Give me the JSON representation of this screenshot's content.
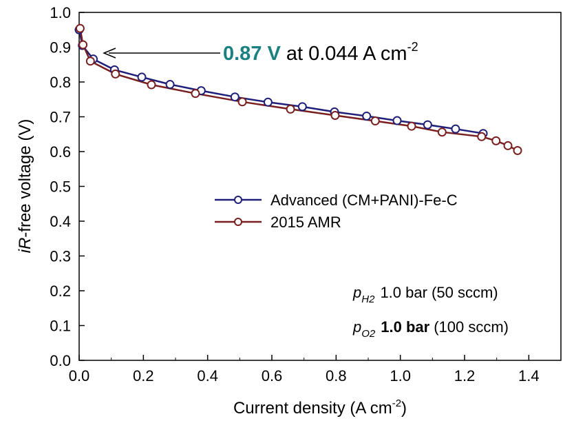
{
  "chart_data": {
    "type": "line",
    "title": "",
    "xlabel": "Current density (A cm",
    "xlabel_sup": "-2",
    "xlabel_close": ")",
    "ylabel_italic": "iR",
    "ylabel_rest": "-free voltage (V)",
    "xlim": [
      0.0,
      1.5
    ],
    "ylim": [
      0.0,
      1.0
    ],
    "xticks": [
      "0.0",
      "0.2",
      "0.4",
      "0.6",
      "0.8",
      "1.0",
      "1.2",
      "1.4"
    ],
    "xtick_values": [
      0.0,
      0.2,
      0.4,
      0.6,
      0.8,
      1.0,
      1.2,
      1.4
    ],
    "yticks": [
      "0.0",
      "0.1",
      "0.2",
      "0.3",
      "0.4",
      "0.5",
      "0.6",
      "0.7",
      "0.8",
      "0.9",
      "1.0"
    ],
    "ytick_values": [
      0.0,
      0.1,
      0.2,
      0.3,
      0.4,
      0.5,
      0.6,
      0.7,
      0.8,
      0.9,
      1.0
    ],
    "grid": false,
    "legend_position": "center-right",
    "series": [
      {
        "name": "Advanced (CM+PANI)-Fe-C",
        "color": "#1f1f7a",
        "x": [
          0.0,
          0.01,
          0.044,
          0.11,
          0.195,
          0.283,
          0.38,
          0.485,
          0.588,
          0.695,
          0.795,
          0.895,
          0.99,
          1.085,
          1.172,
          1.258
        ],
        "y": [
          0.95,
          0.905,
          0.866,
          0.835,
          0.814,
          0.793,
          0.775,
          0.757,
          0.742,
          0.729,
          0.714,
          0.702,
          0.689,
          0.677,
          0.665,
          0.652
        ]
      },
      {
        "name": "2015 AMR",
        "color": "#7a1f1f",
        "x": [
          0.003,
          0.012,
          0.035,
          0.113,
          0.225,
          0.362,
          0.508,
          0.658,
          0.797,
          0.922,
          1.035,
          1.13,
          1.253,
          1.298,
          1.335,
          1.365
        ],
        "y": [
          0.954,
          0.907,
          0.86,
          0.823,
          0.792,
          0.767,
          0.743,
          0.722,
          0.704,
          0.688,
          0.673,
          0.656,
          0.643,
          0.631,
          0.617,
          0.603
        ]
      }
    ],
    "annotation": {
      "value": "0.87 V",
      "value_color": "#1a8080",
      "rest": "at 0.044 A cm",
      "sup": "-2"
    },
    "conditions": [
      {
        "symbol": "p",
        "sub": "H2",
        "bold": "",
        "text": "1.0 bar (50 sccm)"
      },
      {
        "symbol": "p",
        "sub": "O2",
        "bold": "1.0 bar",
        "text": "(100 sccm)"
      }
    ]
  }
}
